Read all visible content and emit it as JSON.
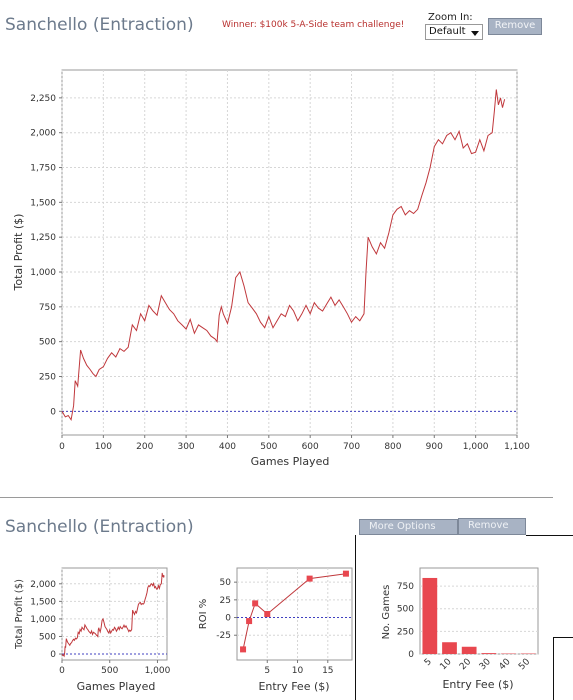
{
  "header": {
    "title": "Sanchello (Entraction)",
    "winner_text": "Winner: $100k 5-A-Side team challenge!",
    "zoom_label": "Zoom In:",
    "zoom_value": "Default",
    "remove_label": "Remove"
  },
  "lower": {
    "title": "Sanchello (Entraction)",
    "more_options_label": "More Options",
    "remove_label": "Remove"
  },
  "colors": {
    "line": "#c0383c",
    "zero_line": "#4040c0",
    "grid": "#d6d6d6",
    "bar": "#e8474f"
  },
  "chart_data": [
    {
      "id": "main",
      "type": "line",
      "xlabel": "Games Played",
      "ylabel": "Total Profit ($)",
      "xlim": [
        0,
        1100
      ],
      "ylim": [
        -170,
        2450
      ],
      "xticks": [
        0,
        100,
        200,
        300,
        400,
        500,
        600,
        700,
        800,
        900,
        1000,
        1100
      ],
      "xtick_labels": [
        "0",
        "100",
        "200",
        "300",
        "400",
        "500",
        "600",
        "700",
        "800",
        "900",
        "1,000",
        "1,100"
      ],
      "yticks": [
        0,
        250,
        500,
        750,
        1000,
        1250,
        1500,
        1750,
        2000,
        2250
      ],
      "ytick_labels": [
        "0",
        "250",
        "500",
        "750",
        "1,000",
        "1,250",
        "1,500",
        "1,750",
        "2,000",
        "2,250"
      ],
      "reference_line": 0,
      "grid": true,
      "series": [
        {
          "x": [
            0,
            8,
            15,
            22,
            28,
            32,
            38,
            45,
            52,
            60,
            68,
            75,
            82,
            90,
            100,
            110,
            120,
            130,
            140,
            150,
            160,
            170,
            180,
            190,
            200,
            210,
            220,
            230,
            240,
            250,
            260,
            270,
            280,
            290,
            300,
            310,
            320,
            330,
            340,
            350,
            360,
            370,
            375,
            380,
            385,
            390,
            400,
            410,
            420,
            430,
            440,
            450,
            460,
            470,
            480,
            490,
            500,
            510,
            520,
            530,
            540,
            550,
            560,
            570,
            580,
            590,
            600,
            610,
            620,
            630,
            640,
            650,
            660,
            670,
            680,
            690,
            700,
            710,
            720,
            730,
            735,
            740,
            750,
            760,
            770,
            780,
            790,
            800,
            810,
            820,
            830,
            840,
            850,
            860,
            870,
            880,
            890,
            900,
            910,
            920,
            930,
            940,
            950,
            960,
            970,
            980,
            990,
            1000,
            1010,
            1020,
            1030,
            1040,
            1045,
            1050,
            1055,
            1060,
            1065,
            1070
          ],
          "y": [
            0,
            -40,
            -30,
            -60,
            40,
            220,
            180,
            440,
            380,
            330,
            300,
            270,
            250,
            300,
            320,
            380,
            420,
            390,
            450,
            430,
            460,
            620,
            580,
            700,
            650,
            760,
            720,
            690,
            830,
            780,
            730,
            700,
            650,
            620,
            590,
            660,
            560,
            620,
            600,
            580,
            540,
            520,
            500,
            690,
            750,
            700,
            630,
            750,
            960,
            1000,
            900,
            780,
            740,
            700,
            640,
            600,
            680,
            600,
            650,
            700,
            680,
            760,
            720,
            650,
            700,
            760,
            700,
            780,
            740,
            720,
            770,
            820,
            760,
            800,
            750,
            700,
            640,
            680,
            650,
            700,
            1000,
            1250,
            1180,
            1130,
            1210,
            1170,
            1280,
            1410,
            1450,
            1470,
            1410,
            1440,
            1420,
            1450,
            1550,
            1640,
            1750,
            1900,
            1950,
            1920,
            1980,
            2000,
            1950,
            2010,
            1890,
            1920,
            1850,
            1860,
            1950,
            1870,
            1980,
            2000,
            2150,
            2310,
            2200,
            2250,
            2180,
            2240
          ]
        }
      ]
    },
    {
      "id": "small-profit",
      "type": "line",
      "xlabel": "Games Played",
      "ylabel": "Total Profit ($)",
      "xlim": [
        0,
        1100
      ],
      "ylim": [
        -170,
        2450
      ],
      "xticks": [
        0,
        500,
        1000
      ],
      "xtick_labels": [
        "0",
        "500",
        "1,000"
      ],
      "yticks": [
        0,
        500,
        1000,
        1500,
        2000
      ],
      "ytick_labels": [
        "0",
        "500",
        "1,000",
        "1,500",
        "2,000"
      ],
      "reference_line": 0,
      "grid": true
    },
    {
      "id": "roi",
      "type": "line",
      "xlabel": "Entry Fee ($)",
      "ylabel": "ROI %",
      "xlim": [
        0,
        19
      ],
      "ylim": [
        -60,
        70
      ],
      "xticks": [
        5,
        10,
        15
      ],
      "xtick_labels": [
        "5",
        "10",
        "15"
      ],
      "yticks": [
        -25,
        0,
        25,
        50
      ],
      "ytick_labels": [
        "-25",
        "0",
        "25",
        "50"
      ],
      "reference_line": 0,
      "grid": true,
      "series": [
        {
          "x": [
            1,
            2,
            3,
            5,
            12,
            18
          ],
          "y": [
            -45,
            -5,
            20,
            5,
            55,
            62
          ]
        }
      ]
    },
    {
      "id": "games",
      "type": "bar",
      "xlabel": "Entry Fee ($)",
      "ylabel": "No. Games",
      "categories": [
        "5",
        "10",
        "20",
        "30",
        "40",
        "50"
      ],
      "values": [
        840,
        130,
        80,
        10,
        5,
        5
      ],
      "ylim": [
        0,
        950
      ],
      "yticks": [
        0,
        250,
        500,
        750
      ],
      "ytick_labels": [
        "0",
        "250",
        "500",
        "750"
      ],
      "grid": true
    }
  ]
}
